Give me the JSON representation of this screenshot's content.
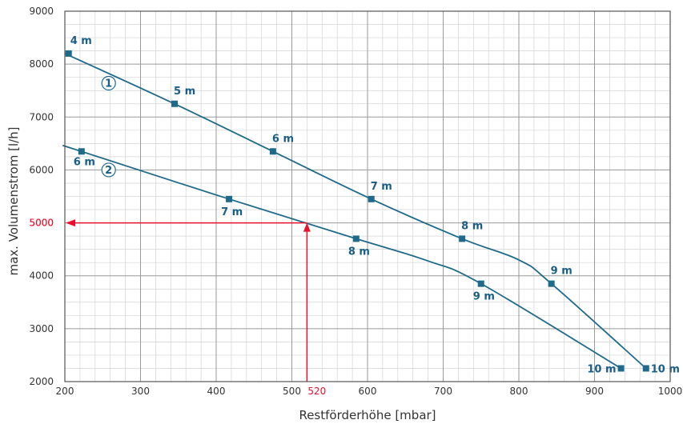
{
  "chart_data": {
    "type": "line",
    "xlabel": "Restförderhöhe [mbar]",
    "ylabel": "max. Volumenstrom [l/h]",
    "xlim": [
      200,
      1000
    ],
    "ylim": [
      2000,
      9000
    ],
    "x_ticks": [
      "200",
      "300",
      "400",
      "500",
      "600",
      "700",
      "800",
      "900",
      "1000"
    ],
    "y_ticks": [
      "2000",
      "3000",
      "4000",
      "5000",
      "6000",
      "7000",
      "8000",
      "9000"
    ],
    "grid": true,
    "colors": {
      "series": "#1f6a8a",
      "marker": "#1f6a8a",
      "label": "#1a5e86",
      "highlight": "#e8102c",
      "grid": "#bbbbbb"
    },
    "series": [
      {
        "marker_label": "1",
        "line": [
          [
            200,
            8200
          ],
          [
            345,
            7250
          ],
          [
            475,
            6350
          ],
          [
            605,
            5450
          ],
          [
            725,
            4700
          ],
          [
            800,
            4300
          ],
          [
            843,
            3850
          ],
          [
            968,
            2250
          ]
        ],
        "points": [
          {
            "x": 205,
            "y": 8200,
            "label": "4 m"
          },
          {
            "x": 345,
            "y": 7250,
            "label": "5 m"
          },
          {
            "x": 475,
            "y": 6350,
            "label": "6 m"
          },
          {
            "x": 605,
            "y": 5450,
            "label": "7 m"
          },
          {
            "x": 725,
            "y": 4700,
            "label": "8 m"
          },
          {
            "x": 843,
            "y": 3850,
            "label": "9 m"
          },
          {
            "x": 968,
            "y": 2250,
            "label": "10 m"
          }
        ]
      },
      {
        "marker_label": "2",
        "line": [
          [
            200,
            6450
          ],
          [
            222,
            6350
          ],
          [
            417,
            5450
          ],
          [
            585,
            4700
          ],
          [
            680,
            4280
          ],
          [
            750,
            3850
          ],
          [
            935,
            2250
          ]
        ],
        "points": [
          {
            "x": 222,
            "y": 6350,
            "label": "6 m"
          },
          {
            "x": 417,
            "y": 5450,
            "label": "7 m"
          },
          {
            "x": 585,
            "y": 4700,
            "label": "8 m"
          },
          {
            "x": 750,
            "y": 3850,
            "label": "9 m"
          },
          {
            "x": 935,
            "y": 2250,
            "label": "10 m"
          }
        ]
      }
    ],
    "annotation": {
      "x": 520,
      "y": 5000,
      "x_label": "520",
      "y_label": "5000"
    }
  }
}
